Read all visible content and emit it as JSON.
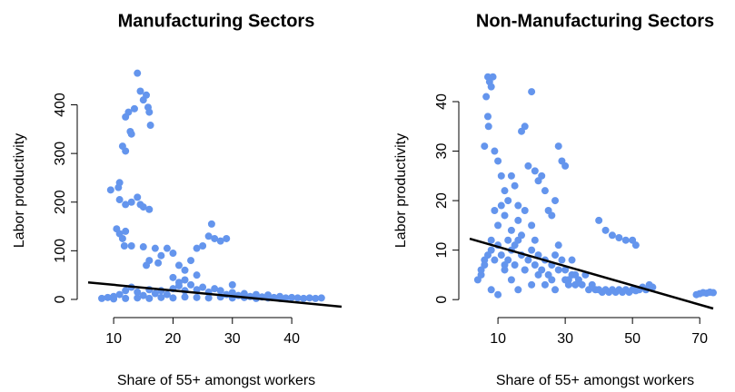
{
  "chart_data": [
    {
      "type": "scatter",
      "title": "Manufacturing Sectors",
      "xlabel": "Share of 55+ amongst workers",
      "ylabel": "Labor productivity",
      "color": "#6495ed",
      "x": [
        14,
        14.5,
        15,
        15.5,
        15.8,
        16,
        16.2,
        13.5,
        12.5,
        12,
        12.8,
        13,
        11.5,
        12,
        11,
        10.8,
        9.5,
        11,
        12,
        13,
        14,
        14.5,
        15,
        16,
        10.5,
        11,
        11.5,
        12,
        11.8,
        13,
        15,
        17,
        17.5,
        16,
        15.5,
        19,
        20,
        18,
        21,
        22,
        22,
        24,
        25,
        26,
        26.5,
        27,
        28,
        29,
        23,
        24,
        20,
        21,
        30,
        8,
        9,
        10,
        11,
        12,
        13,
        14,
        15,
        16,
        17,
        18,
        19,
        20,
        21,
        22,
        23,
        24,
        25,
        26,
        27,
        28,
        29,
        30,
        31,
        32,
        33,
        34,
        35,
        36,
        37,
        38,
        39,
        40,
        41,
        42,
        43,
        44,
        45,
        10,
        12,
        14,
        16,
        18,
        20,
        22,
        24,
        26,
        28,
        30,
        32,
        34,
        36,
        38
      ],
      "values": [
        465,
        428,
        410,
        420,
        395,
        385,
        358,
        392,
        385,
        375,
        345,
        340,
        315,
        305,
        240,
        230,
        225,
        205,
        195,
        200,
        210,
        195,
        190,
        185,
        145,
        135,
        125,
        140,
        110,
        110,
        108,
        105,
        75,
        80,
        70,
        105,
        95,
        90,
        70,
        60,
        40,
        105,
        110,
        130,
        155,
        125,
        120,
        125,
        80,
        50,
        45,
        35,
        30,
        2,
        4,
        6,
        10,
        18,
        25,
        15,
        8,
        20,
        12,
        18,
        10,
        22,
        28,
        18,
        30,
        20,
        25,
        15,
        22,
        18,
        10,
        14,
        8,
        12,
        6,
        10,
        5,
        9,
        4,
        6,
        3,
        4,
        3,
        2,
        3,
        2,
        3,
        1,
        2,
        3,
        2,
        4,
        3,
        5,
        4,
        3,
        5,
        3,
        4,
        2,
        3,
        2
      ],
      "fit_line": {
        "x": [
          5.7,
          48.4
        ],
        "y": [
          35,
          -15
        ]
      },
      "xlim": [
        5.7,
        48.4
      ],
      "ylim": [
        -15,
        470
      ],
      "xticks": [
        10,
        20,
        30,
        40
      ],
      "yticks": [
        0,
        100,
        200,
        300,
        400
      ]
    },
    {
      "type": "scatter",
      "title": "Non-Manufacturing Sectors",
      "xlabel": "Share of 55+ amongst workers",
      "ylabel": "Labor productivity",
      "color": "#6495ed",
      "x": [
        7,
        7.5,
        8,
        6.5,
        7,
        8.5,
        6,
        7.2,
        9,
        10,
        11,
        12,
        13,
        14,
        15,
        16,
        17,
        18,
        19,
        20,
        21,
        22,
        23,
        24,
        25,
        26,
        27,
        28,
        29,
        30,
        20,
        21,
        18,
        17,
        16,
        15,
        14,
        13,
        12,
        11,
        10,
        9,
        8,
        6,
        5,
        4,
        5,
        6,
        7,
        8,
        9,
        10,
        11,
        12,
        13,
        14,
        15,
        16,
        17,
        18,
        19,
        20,
        21,
        22,
        23,
        24,
        25,
        26,
        27,
        28,
        29,
        30,
        31,
        32,
        33,
        34,
        35,
        36,
        37,
        38,
        39,
        40,
        41,
        42,
        43,
        44,
        45,
        46,
        47,
        48,
        49,
        50,
        51,
        52,
        53,
        54,
        55,
        56,
        40,
        42,
        44,
        46,
        48,
        50,
        51,
        33,
        32,
        31,
        30,
        28,
        27,
        26,
        24,
        22,
        20,
        18,
        16,
        14,
        12,
        10,
        8,
        69,
        70,
        71,
        72,
        73,
        74
      ],
      "values": [
        45,
        44,
        43,
        41,
        37,
        45,
        31,
        35,
        30,
        28,
        25,
        22,
        20,
        25,
        23,
        19,
        34,
        35,
        27,
        42,
        26,
        24,
        25,
        22,
        18,
        17,
        20,
        31,
        28,
        27,
        15,
        12,
        18,
        13,
        16,
        11,
        14,
        12,
        17,
        19,
        15,
        18,
        12,
        8,
        5,
        4,
        6,
        7,
        9,
        10,
        8,
        11,
        9,
        6,
        8,
        10,
        7,
        12,
        9,
        6,
        8,
        10,
        7,
        9,
        6,
        8,
        5,
        7,
        9,
        11,
        8,
        6,
        4,
        5,
        3,
        4,
        3,
        5,
        2,
        3,
        2,
        2,
        1.5,
        2,
        1.5,
        2,
        1.5,
        2,
        1.5,
        2,
        1.5,
        2,
        1.8,
        2,
        2.5,
        2,
        3,
        2.5,
        16,
        14,
        13,
        12.5,
        12,
        12,
        11,
        5,
        8,
        3,
        4,
        6,
        2,
        4,
        3,
        5,
        3,
        6,
        2,
        4,
        7,
        1,
        2,
        1,
        1.2,
        1.4,
        1.3,
        1.5,
        1.4
      ],
      "fit_line": {
        "x": [
          1.6,
          74
        ],
        "y": [
          12.3,
          -1.8
        ]
      },
      "xlim": [
        1.6,
        74
      ],
      "ylim": [
        -1.8,
        45.5
      ],
      "xticks": [
        10,
        30,
        50,
        70
      ],
      "yticks": [
        0,
        10,
        20,
        30,
        40
      ]
    }
  ]
}
